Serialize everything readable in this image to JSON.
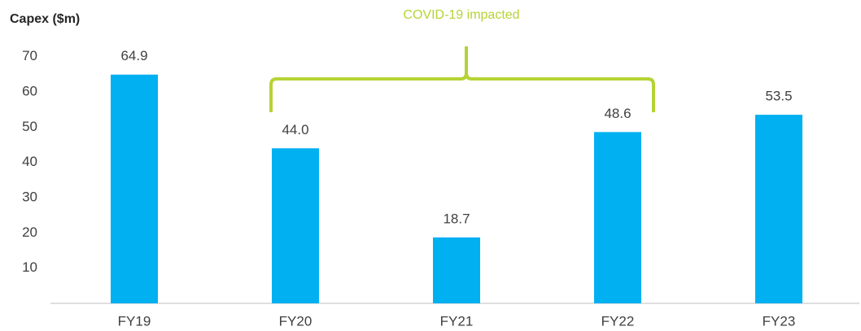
{
  "chart_data": {
    "type": "bar",
    "title": "Capex ($m)",
    "annotation": "COVID-19 impacted",
    "categories": [
      "FY19",
      "FY20",
      "FY21",
      "FY22",
      "FY23"
    ],
    "values": [
      64.9,
      44.0,
      18.7,
      48.6,
      53.5
    ],
    "value_labels": [
      "64.9",
      "44.0",
      "18.7",
      "48.6",
      "53.5"
    ],
    "color": "#00b0f0",
    "ylim": [
      0,
      80
    ],
    "yticks": [
      10,
      20,
      30,
      40,
      50,
      60,
      70
    ],
    "grid": false
  }
}
